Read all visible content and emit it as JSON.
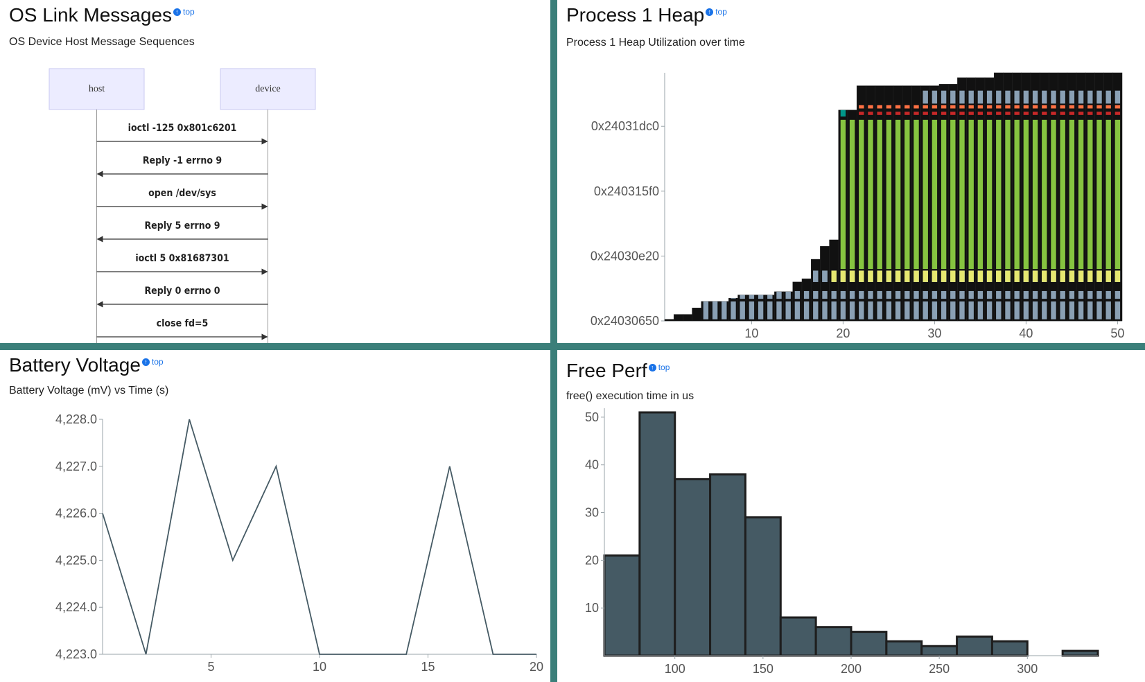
{
  "panels": {
    "os_link": {
      "title": "OS Link Messages",
      "top_link": "top",
      "subtitle": "OS Device Host Message Sequences",
      "actors": [
        "host",
        "device"
      ],
      "messages": [
        {
          "label": "ioctl -125 0x801c6201",
          "direction": "host-to-device"
        },
        {
          "label": "Reply -1 errno 9",
          "direction": "device-to-host"
        },
        {
          "label": "open /dev/sys",
          "direction": "host-to-device"
        },
        {
          "label": "Reply 5 errno 9",
          "direction": "device-to-host"
        },
        {
          "label": "ioctl 5 0x81687301",
          "direction": "host-to-device"
        },
        {
          "label": "Reply 0 errno 0",
          "direction": "device-to-host"
        },
        {
          "label": "close fd=5",
          "direction": "host-to-device"
        }
      ]
    },
    "heap": {
      "title": "Process 1 Heap",
      "top_link": "top",
      "subtitle": "Process 1 Heap Utilization over time"
    },
    "battery": {
      "title": "Battery Voltage",
      "top_link": "top",
      "subtitle": "Battery Voltage (mV) vs Time (s)"
    },
    "free_perf": {
      "title": "Free Perf",
      "top_link": "top",
      "subtitle": "free() execution time in us"
    }
  },
  "chart_data": [
    {
      "id": "heap",
      "type": "bar",
      "title": "",
      "xlim": [
        1,
        50
      ],
      "x_ticks": [
        10,
        20,
        30,
        40,
        50
      ],
      "y_ticks": [
        {
          "label": "0x24030650",
          "value": 0
        },
        {
          "label": "0x24030e20",
          "value": 2000
        },
        {
          "label": "0x240315f0",
          "value": 4000
        },
        {
          "label": "0x24031dc0",
          "value": 6000
        }
      ],
      "ylim": [
        0,
        7650
      ],
      "totals": [
        50,
        200,
        200,
        400,
        600,
        600,
        600,
        700,
        800,
        800,
        800,
        800,
        900,
        900,
        1200,
        1300,
        1900,
        2300,
        2500,
        6500,
        6500,
        7250,
        7250,
        7250,
        7250,
        7250,
        7250,
        7250,
        7250,
        7250,
        7300,
        7300,
        7500,
        7500,
        7500,
        7500,
        7650,
        7650,
        7650,
        7650,
        7650,
        7650,
        7650,
        7650,
        7650,
        7650,
        7650,
        7650,
        7650,
        7650
      ],
      "colors": {
        "used_outline": "#111111",
        "grey": "#8aa0b4",
        "yellow": "#e6e870",
        "green": "#86c440",
        "orange": "#ff7043",
        "teal": "#009688",
        "red": "#c62828"
      }
    },
    {
      "id": "battery",
      "type": "line",
      "title": "",
      "x": [
        0,
        2,
        4,
        6,
        8,
        10,
        12,
        14,
        16,
        18,
        20
      ],
      "y": [
        4226,
        4223,
        4228,
        4225,
        4227,
        4223,
        4223,
        4223,
        4227,
        4223,
        4223
      ],
      "xlim": [
        0,
        20
      ],
      "ylim": [
        4223,
        4228
      ],
      "x_ticks": [
        5,
        10,
        15,
        20
      ],
      "y_ticks": [
        {
          "label": "4,223.0",
          "value": 4223
        },
        {
          "label": "4,224.0",
          "value": 4224
        },
        {
          "label": "4,225.0",
          "value": 4225
        },
        {
          "label": "4,226.0",
          "value": 4226
        },
        {
          "label": "4,227.0",
          "value": 4227
        },
        {
          "label": "4,228.0",
          "value": 4228
        }
      ],
      "color": "#455a64"
    },
    {
      "id": "free_perf",
      "type": "bar",
      "title": "",
      "bin_edges": [
        60,
        80,
        100,
        120,
        140,
        160,
        180,
        200,
        220,
        240,
        260,
        280,
        300,
        320,
        340
      ],
      "values": [
        21,
        51,
        37,
        38,
        29,
        8,
        6,
        5,
        3,
        2,
        4,
        3,
        0,
        1
      ],
      "xlim": [
        60,
        340
      ],
      "ylim": [
        0,
        51
      ],
      "x_ticks": [
        100,
        150,
        200,
        250,
        300
      ],
      "y_ticks": [
        10,
        20,
        30,
        40,
        50
      ],
      "color": "#455a64"
    }
  ]
}
